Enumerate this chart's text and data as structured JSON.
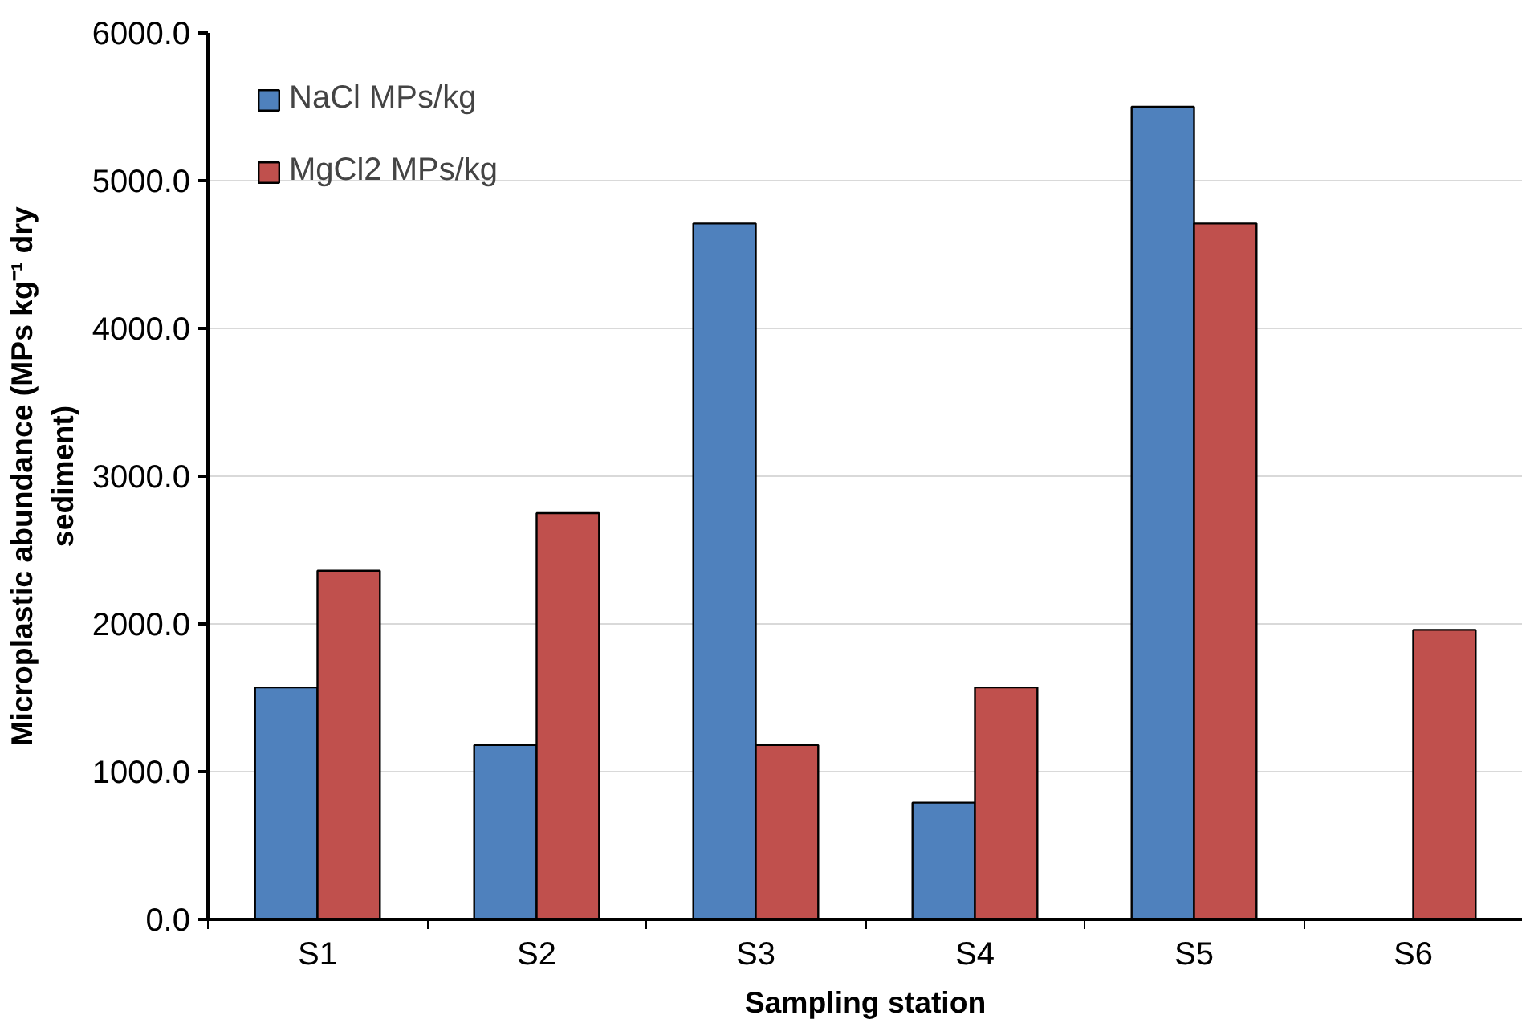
{
  "chart_data": {
    "type": "bar",
    "xlabel": "Sampling station",
    "ylabel": "Microplastic abundance (MPs kg⁻¹ dry sediment)",
    "categories": [
      "S1",
      "S2",
      "S3",
      "S4",
      "S5",
      "S6"
    ],
    "series": [
      {
        "name": "NaCl MPs/kg",
        "color": "#4f81bd",
        "values": [
          1570,
          1180,
          4710,
          790,
          5500,
          0
        ]
      },
      {
        "name": "MgCl2 MPs/kg",
        "color": "#c0504d",
        "values": [
          2360,
          2750,
          1180,
          1570,
          4710,
          1960
        ]
      }
    ],
    "ylim": [
      0,
      6000
    ],
    "yticks": [
      {
        "value": 0,
        "label": "0.0"
      },
      {
        "value": 1000,
        "label": "1000.0"
      },
      {
        "value": 2000,
        "label": "2000.0"
      },
      {
        "value": 3000,
        "label": "3000.0"
      },
      {
        "value": 4000,
        "label": "4000.0"
      },
      {
        "value": 5000,
        "label": "5000.0"
      },
      {
        "value": 6000,
        "label": "6000.0"
      }
    ],
    "grid": "y",
    "legend": "top left"
  }
}
